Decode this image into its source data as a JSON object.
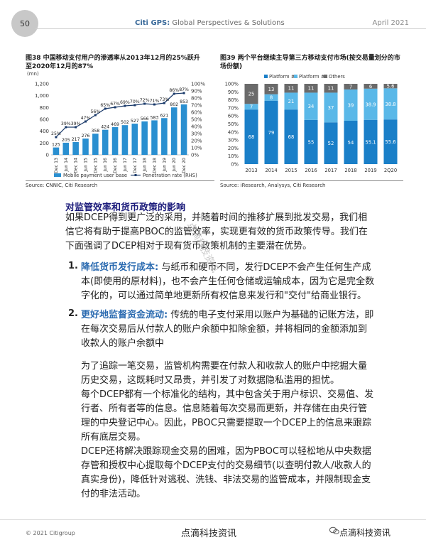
{
  "header": {
    "page_number": "50",
    "title_brand": "Citi GPS:",
    "title_rest": " Global Perspectives & Solutions",
    "date": "April 2021"
  },
  "figure38": {
    "title": "图38 中国移动支付用户的渗透率从2013年12月的25%跃升至2020年12月的87%",
    "unit_label": "(mn)",
    "legend_bar": "Mobile payment user base",
    "legend_line": "Penetration rate (RHS)",
    "source": "Source: CNNIC, Citi Research"
  },
  "figure39": {
    "title": "图39 两个平台继续主导第三方移动支付市场(按交易量划分的市场份额)",
    "legend": [
      "Platform #1",
      "Platform #2",
      "Others"
    ],
    "source": "Source: iResearch, Analysys, Citi Research"
  },
  "chart_data": [
    {
      "type": "bar",
      "categories": [
        "Dec 13",
        "Jun 14",
        "Dec 14",
        "Jun 15",
        "Dec 15",
        "Jun 16",
        "Dec 16",
        "Jun 17",
        "Dec 17",
        "Jun 18",
        "Dec 18",
        "Jun 19",
        "Jun 20",
        "Dec 20"
      ],
      "series": [
        {
          "name": "Mobile payment user base",
          "type": "bar",
          "values": [
            125,
            205,
            217,
            276,
            358,
            424,
            469,
            502,
            527,
            566,
            583,
            621,
            802,
            853
          ]
        },
        {
          "name": "Penetration rate (RHS)",
          "type": "line",
          "values": [
            25,
            39,
            39,
            47,
            56,
            65,
            67,
            69,
            70,
            72,
            71,
            73,
            86,
            87
          ]
        }
      ],
      "bar_labels": [
        "125",
        "205",
        "217",
        "276",
        "358",
        "424",
        "469",
        "502",
        "527",
        "566",
        "583",
        "621",
        "802",
        "853"
      ],
      "line_labels": [
        "25%",
        "39%",
        "39%",
        "47%",
        "56%",
        "65%",
        "67%",
        "69%",
        "70%",
        "72%",
        "71%",
        "73%",
        "86%",
        "87%"
      ],
      "ylim": [
        0,
        1200
      ],
      "y_ticks": [
        "0",
        "200",
        "400",
        "600",
        "800",
        "1,000",
        "1,200"
      ],
      "y2lim": [
        0,
        100
      ],
      "y2_ticks": [
        "0%",
        "10%",
        "20%",
        "30%",
        "40%",
        "50%",
        "60%",
        "70%",
        "80%",
        "90%",
        "100%"
      ],
      "colors": {
        "bar": "#2a8fd0",
        "line": "#1a3a6a"
      }
    },
    {
      "type": "bar",
      "stacked": true,
      "categories": [
        "2013",
        "2014",
        "2015",
        "2016",
        "2017",
        "2018",
        "2019",
        "2Q20"
      ],
      "series": [
        {
          "name": "Platform #1",
          "values": [
            68,
            79,
            68,
            55,
            52,
            54,
            55.1,
            55.6
          ],
          "labels": [
            "68",
            "79",
            "68",
            "55",
            "52",
            "54",
            "55.1",
            "55.6"
          ]
        },
        {
          "name": "Platform #2",
          "values": [
            7,
            8,
            21,
            34,
            37,
            39,
            38.9,
            38.8
          ],
          "labels": [
            "7",
            "8",
            "21",
            "34",
            "37",
            "39",
            "38.9",
            "38.8"
          ]
        },
        {
          "name": "Others",
          "values": [
            25,
            13,
            11,
            11,
            11,
            7,
            6,
            5.6
          ],
          "labels": [
            "25",
            "13",
            "11",
            "11",
            "11",
            "7",
            "6",
            "5.6"
          ]
        }
      ],
      "ylim": [
        0,
        100
      ],
      "y_ticks": [
        "0%",
        "10%",
        "20%",
        "30%",
        "40%",
        "50%",
        "60%",
        "70%",
        "80%",
        "90%",
        "100%"
      ],
      "colors": {
        "Platform #1": "#1a7fc8",
        "Platform #2": "#5ab8e8",
        "Others": "#6a6a6a"
      }
    }
  ],
  "body": {
    "heading": "对监管效率和货币政策的影响",
    "intro_1": "如果DCEP得到更广泛的采用，并随着时间的推移扩展到批发交易，我们相",
    "intro_2": "信它将有助于提高PBOC的监管效率，实现更有效的货币政策传导。我们在",
    "intro_3": "下面强调了DCEP相对于现有货币政策机制的主要潜在优势。",
    "item1_num": "1.",
    "item1_label": "降低货币发行成本:",
    "item1_l1": " 与纸币和硬币不同，发行DCEP不会产生任何生产成",
    "item1_l2": "本(即使用的原材料)，也不会产生任何仓储或运输成本，因为它是完全数",
    "item1_l3": "字化的，可以通过简单地更新所有权信息来发行和\"交付\"给商业银行。",
    "item2_num": "2.",
    "item2_label": "更好地监督资金流动:",
    "item2_l1": " 传统的电子支付采用以账户为基础的记账方法，即",
    "item2_l2": "在每次交易后从付款人的账户余额中扣除金额，并将相同的金额添加到",
    "item2_l3": "收款人的账户余额中",
    "p2_l1": "为了追踪一笔交易，监管机构需要在付款人和收款人的账户中挖掘大量",
    "p2_l2": "历史交易，这既耗时又昂贵，并引发了对数据隐私滥用的担忧。",
    "p3_l1": "每个DCEP都有一个标准化的结构，其中包含关于用户标识、交易值、发",
    "p3_l2": "行者、所有者等的信息。信息随着每次交易而更新，并存储在由央行管",
    "p3_l3": "理的中央登记中心。因此，PBOC只需要提取一个DCEP上的信息来跟踪",
    "p3_l4": "所有底层交易。",
    "p4_l1": "DCEP还将解决跟踪现金交易的困难，因为PBOC可以轻松地从中央数据",
    "p4_l2": "存管和授权中心提取每个DCEP支付的交易细节(以查明付款人/收款人的",
    "p4_l3": "真实身份)，降低针对逃税、洗钱、非法交易的监管成本，并限制现金支",
    "p4_l4": "付的非法活动。"
  },
  "watermark": "点滴科技资讯",
  "footer": {
    "copyright": "© 2021 Citigroup",
    "center": "点滴科技资讯",
    "right": "点滴科技资讯"
  }
}
